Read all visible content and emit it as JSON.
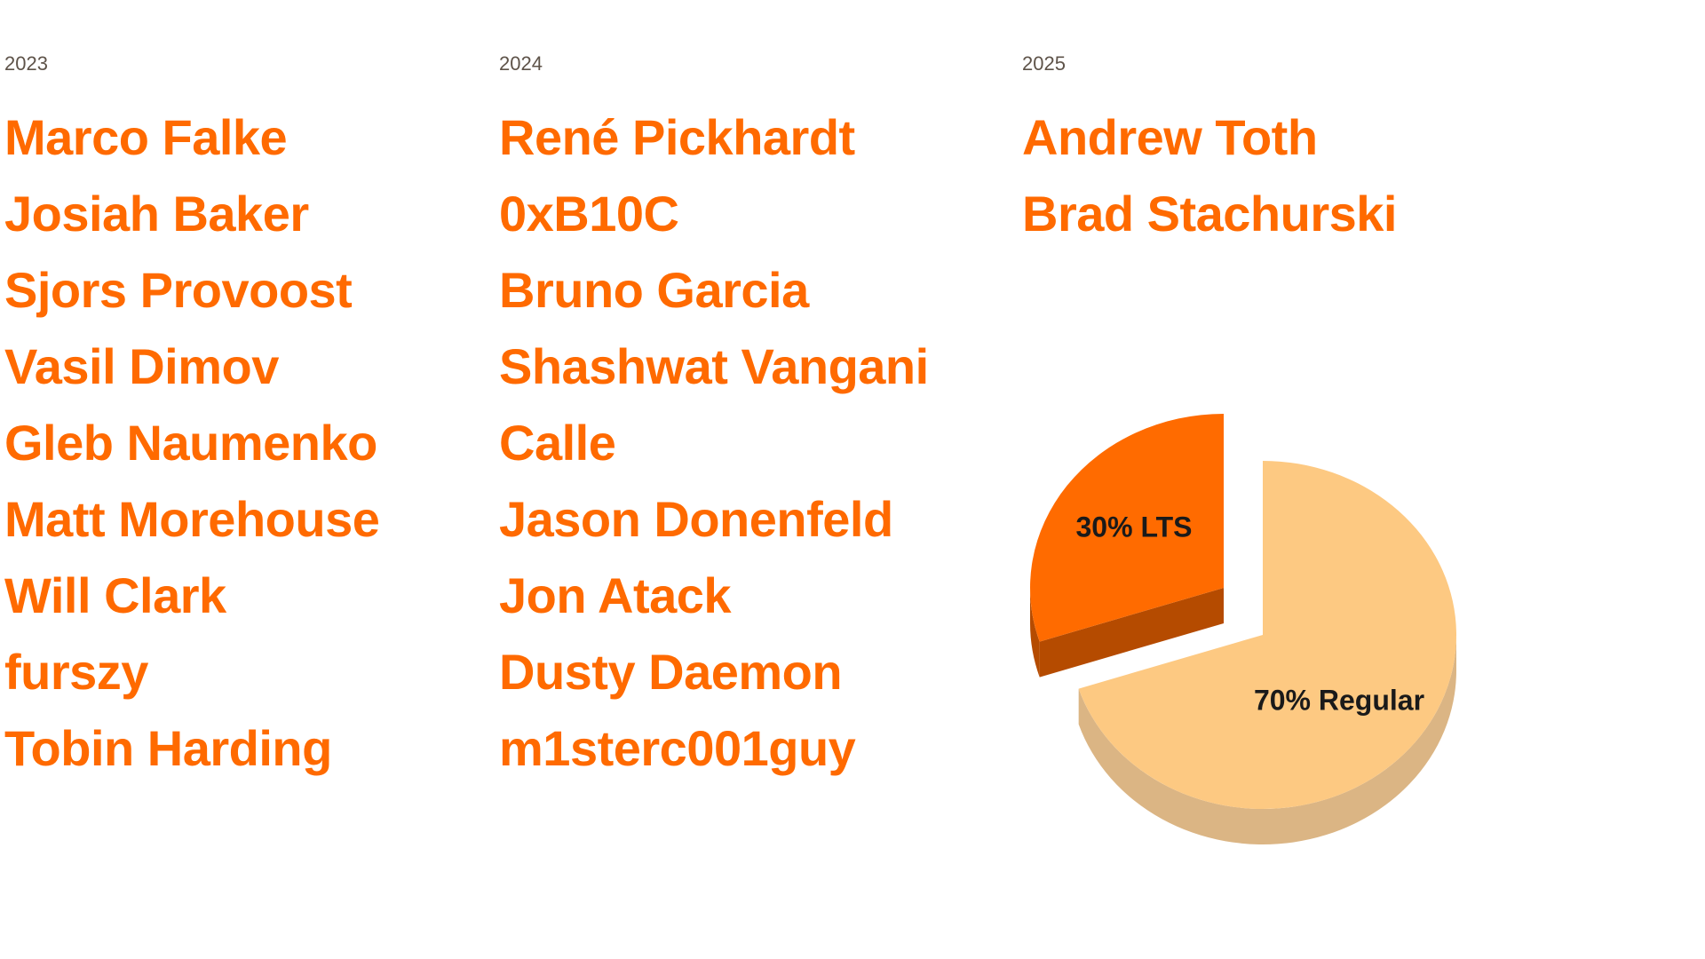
{
  "columns": [
    {
      "year": "2023",
      "names": [
        "Marco Falke",
        "Josiah Baker",
        "Sjors Provoost",
        "Vasil Dimov",
        "Gleb Naumenko",
        "Matt Morehouse",
        "Will Clark",
        "furszy",
        "Tobin Harding"
      ]
    },
    {
      "year": "2024",
      "names": [
        "René Pickhardt",
        "0xB10C",
        "Bruno Garcia",
        "Shashwat Vangani",
        "Calle",
        "Jason Donenfeld",
        "Jon Atack",
        "Dusty Daemon",
        "m1sterc001guy"
      ]
    },
    {
      "year": "2025",
      "names": [
        "Andrew Toth",
        "Brad Stachurski"
      ]
    }
  ],
  "colors": {
    "accent": "#ff6a00",
    "year_text": "#5e5349"
  },
  "chart_data": {
    "type": "pie",
    "style": "3d-exploded",
    "slices": [
      {
        "label": "30% LTS",
        "value": 30,
        "color": "#ff6b00",
        "side_color": "#b54b00"
      },
      {
        "label": "70% Regular",
        "value": 70,
        "color": "#fdc982",
        "side_color": "#dbb584"
      }
    ]
  }
}
